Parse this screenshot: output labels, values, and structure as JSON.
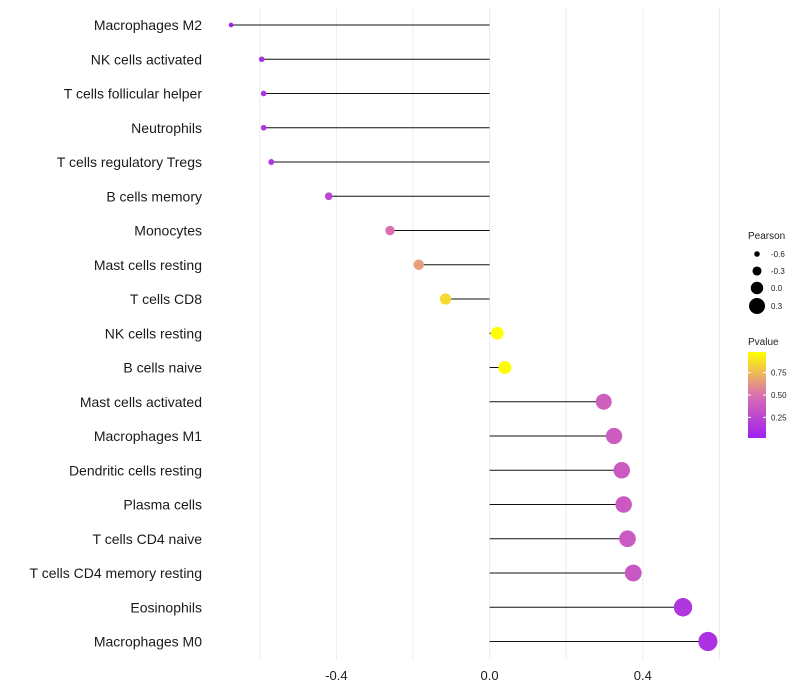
{
  "chart_data": {
    "type": "lollipop",
    "orientation": "horizontal",
    "title": "",
    "xlabel": "",
    "ylabel": "",
    "xlim": [
      -0.66,
      0.6
    ],
    "xticks": [
      -0.4,
      0.0,
      0.4
    ],
    "xtick_labels": [
      "-0.4",
      "0.0",
      "0.4"
    ],
    "grid": true,
    "baseline": 0.0,
    "categories": [
      "Macrophages M2",
      "NK cells activated",
      "T cells follicular helper",
      "Neutrophils",
      "T cells regulatory  Tregs",
      "B cells memory",
      "Monocytes",
      "Mast cells resting",
      "T cells CD8",
      "NK cells resting",
      "B cells naive",
      "Mast cells activated",
      "Macrophages M1",
      "Dendritic cells resting",
      "Plasma cells",
      "T cells CD4 naive",
      "T cells CD4 memory resting",
      "Eosinophils",
      "Macrophages M0"
    ],
    "values": [
      -0.675,
      -0.595,
      -0.59,
      -0.59,
      -0.57,
      -0.42,
      -0.26,
      -0.185,
      -0.115,
      0.02,
      0.04,
      0.298,
      0.325,
      0.345,
      0.35,
      0.36,
      0.375,
      0.505,
      0.57
    ],
    "pvalues": [
      0.02,
      0.12,
      0.15,
      0.15,
      0.15,
      0.25,
      0.5,
      0.65,
      0.85,
      0.98,
      0.97,
      0.4,
      0.38,
      0.37,
      0.37,
      0.36,
      0.35,
      0.15,
      0.12
    ],
    "legend": {
      "size_title": "Pearson",
      "size_entries": [
        {
          "label": "-0.6",
          "value": -0.6
        },
        {
          "label": "-0.3",
          "value": -0.3
        },
        {
          "label": "0.0",
          "value": 0.0
        },
        {
          "label": "0.3",
          "value": 0.3
        }
      ],
      "color_title": "Pvalue",
      "color_ticks": [
        {
          "label": "0.75",
          "value": 0.75
        },
        {
          "label": "0.50",
          "value": 0.5
        },
        {
          "label": "0.25",
          "value": 0.25
        }
      ],
      "color_range": [
        0.02,
        0.98
      ],
      "placement": "right"
    },
    "colors": {
      "low": "#A020F0",
      "mid": "#DA70B0",
      "high": "#FFFF00",
      "stem": "#111111",
      "grid": "#ececec"
    }
  }
}
